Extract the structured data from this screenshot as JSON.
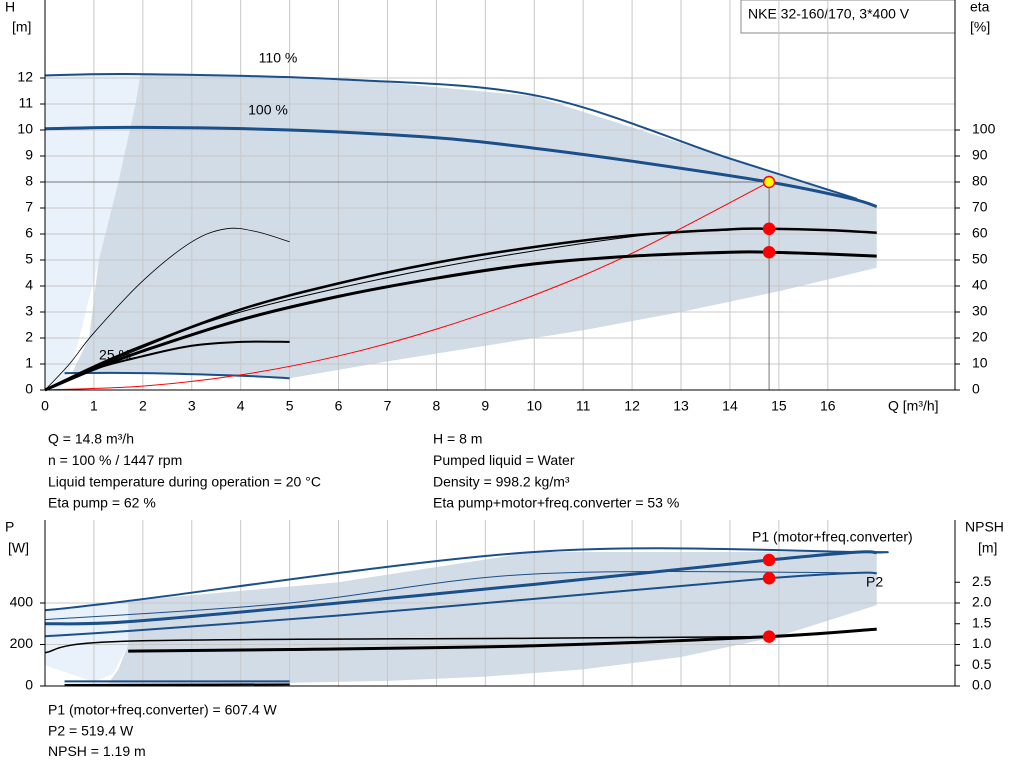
{
  "chart_data": [
    {
      "type": "line",
      "title": "NKE 32-160/170, 3*400 V",
      "xlabel": "Q [m³/h]",
      "ylabel": "H",
      "yunit": "[m]",
      "y2label": "eta",
      "y2unit": "[%]",
      "xlim": [
        0,
        18.6
      ],
      "xticks": [
        0,
        1,
        2,
        3,
        4,
        5,
        6,
        7,
        8,
        9,
        10,
        11,
        12,
        13,
        14,
        15,
        16
      ],
      "ylim": [
        0,
        15
      ],
      "yticks": [
        0,
        1,
        2,
        3,
        4,
        5,
        6,
        7,
        8,
        9,
        10,
        11,
        12
      ],
      "y2lim": [
        0,
        150
      ],
      "y2ticks": [
        0,
        10,
        20,
        30,
        40,
        50,
        60,
        70,
        80,
        90,
        100
      ],
      "grid": true,
      "annotations": [
        "110 %",
        "100 %",
        "25 %"
      ],
      "areas": [
        {
          "color": "#e9f1fa",
          "x": [
            0,
            0,
            1.95,
            1.85,
            1.5,
            1.1,
            0.7,
            0.5,
            0.3
          ],
          "values": [
            0,
            12.1,
            12.15,
            11,
            8,
            5,
            2,
            0.7,
            0
          ]
        },
        {
          "color": "#d1dce7",
          "x": [
            1.95,
            6,
            10,
            14,
            16.5,
            17,
            17,
            15,
            13,
            11,
            9,
            7,
            5,
            4,
            2,
            0.55,
            0.9,
            1.1,
            1.5,
            1.85
          ],
          "values": [
            12.15,
            12,
            11.3,
            8.9,
            7.4,
            7.05,
            4.7,
            3.8,
            3.0,
            2.3,
            1.7,
            1.1,
            0.45,
            0.55,
            0.65,
            0.65,
            2,
            5,
            8,
            11
          ]
        }
      ],
      "series": [
        {
          "color": "#1a4f8a",
          "linewidth": 2,
          "x": [
            0,
            1.9,
            6,
            10.1,
            14,
            16.6
          ],
          "values": [
            12.1,
            12.15,
            11.95,
            11.3,
            8.9,
            7.35
          ]
        },
        {
          "color": "#1a4f8a",
          "linewidth": 3,
          "x": [
            0,
            2,
            5,
            8,
            10,
            12,
            14.8,
            16.5,
            17
          ],
          "values": [
            10.05,
            10.1,
            10.0,
            9.7,
            9.3,
            8.8,
            8.0,
            7.35,
            7.05
          ]
        },
        {
          "color": "#1a4f8a",
          "linewidth": 2,
          "x": [
            0.4,
            2,
            4,
            5
          ],
          "values": [
            0.65,
            0.65,
            0.55,
            0.45
          ]
        },
        {
          "color": "#ff0000",
          "linewidth": 1,
          "x": [
            0,
            2,
            4,
            6,
            8,
            10,
            12,
            14.8
          ],
          "values": [
            0,
            0.15,
            0.58,
            1.31,
            2.34,
            3.65,
            5.26,
            8.0
          ]
        },
        {
          "color": "#000000",
          "linewidth": 2.5,
          "axis": "y2",
          "x": [
            0,
            1,
            2,
            4,
            6,
            8,
            10,
            12,
            14,
            14.8,
            16,
            17
          ],
          "values": [
            0,
            9,
            17,
            31,
            41,
            49,
            55,
            59.5,
            61.8,
            62,
            61.5,
            60.5
          ]
        },
        {
          "color": "#000000",
          "linewidth": 1,
          "axis": "y2",
          "x": [
            0,
            1.7,
            4,
            8,
            12,
            14
          ],
          "values": [
            0,
            14,
            30,
            47,
            59,
            61.5
          ]
        },
        {
          "color": "#000000",
          "linewidth": 3,
          "axis": "y2",
          "x": [
            0,
            1,
            2,
            4,
            6,
            8,
            10,
            12,
            14,
            14.8,
            16,
            17
          ],
          "values": [
            0,
            8,
            15,
            27,
            36,
            43,
            48.5,
            51.5,
            53,
            53,
            52.3,
            51.5
          ]
        },
        {
          "color": "#000000",
          "linewidth": 0.8,
          "axis": "y2",
          "x": [
            0,
            0.5,
            1,
            2,
            3,
            3.7,
            4.3,
            5
          ],
          "values": [
            0,
            10,
            22,
            42,
            57,
            62,
            61,
            57
          ]
        },
        {
          "color": "#000000",
          "linewidth": 2,
          "axis": "y2",
          "x": [
            0,
            1,
            2,
            3,
            4,
            5
          ],
          "values": [
            0,
            8,
            13,
            17,
            18.5,
            18.5
          ]
        }
      ],
      "markers": [
        {
          "x": 14.8,
          "value": 8,
          "color": "#ffff00"
        },
        {
          "x": 14.8,
          "value": 62,
          "axis": "y2",
          "color": "#ff0000"
        },
        {
          "x": 14.8,
          "value": 53,
          "axis": "y2",
          "color": "#ff0000"
        }
      ]
    },
    {
      "type": "line",
      "ylabel": "P",
      "yunit": "[W]",
      "y2label": "NPSH",
      "y2unit": "[m]",
      "xlim": [
        0,
        18.6
      ],
      "ylim": [
        0,
        800
      ],
      "yticks": [
        0,
        200,
        400
      ],
      "y2lim": [
        0,
        4
      ],
      "y2ticks": [
        {
          "value": 0,
          "label": "0.0"
        },
        0.5,
        {
          "value": 1,
          "label": "1.0"
        },
        1.5,
        {
          "value": 2,
          "label": "2.0"
        },
        2.5
      ],
      "grid": true,
      "areas": [
        {
          "color": "#e9f1fa",
          "x": [
            0,
            1.7,
            1.7,
            1.4,
            1,
            0
          ],
          "values": [
            360,
            410,
            200,
            60,
            20,
            100
          ]
        },
        {
          "color": "#d1dce7",
          "x": [
            1.7,
            6,
            10,
            17,
            17,
            15,
            13,
            11,
            9,
            7,
            5,
            1.3,
            1.5,
            1.7
          ],
          "values": [
            410,
            500,
            646,
            646,
            390,
            240,
            140,
            80,
            45,
            25,
            15,
            15,
            80,
            200
          ]
        }
      ],
      "series": [
        {
          "color": "#1a4f8a",
          "linewidth": 2,
          "x": [
            0,
            1.7,
            10,
            16.6,
            17
          ],
          "values": [
            365,
            410,
            646,
            646,
            643
          ]
        },
        {
          "color": "#1a4f8a",
          "linewidth": 1,
          "x": [
            0,
            5,
            10,
            17
          ],
          "values": [
            320,
            400,
            540,
            545
          ]
        },
        {
          "name": "P1 (motor+freq.converter)",
          "color": "#1a4f8a",
          "linewidth": 3,
          "x": [
            0,
            1.7,
            6,
            10,
            14.8,
            16.6,
            17
          ],
          "values": [
            300,
            310,
            400,
            490,
            607,
            645,
            642
          ]
        },
        {
          "name": "P2",
          "color": "#1a4f8a",
          "linewidth": 2,
          "x": [
            0,
            1.7,
            6,
            10,
            14.8,
            16.6,
            17
          ],
          "values": [
            240,
            265,
            340,
            420,
            519,
            545,
            543
          ]
        },
        {
          "color": "#1a4f8a",
          "linewidth": 2,
          "x": [
            0.4,
            5
          ],
          "values": [
            22,
            22
          ]
        },
        {
          "color": "#000000",
          "linewidth": 2,
          "x": [
            0.4,
            5
          ],
          "values": [
            5,
            8
          ]
        },
        {
          "color": "#000000",
          "linewidth": 1.5,
          "axis": "y2",
          "x": [
            0,
            1.7,
            10,
            14.8
          ],
          "values": [
            0.8,
            1.08,
            1.15,
            1.19
          ]
        },
        {
          "color": "#000000",
          "linewidth": 3,
          "axis": "y2",
          "x": [
            1.7,
            5,
            10,
            14.8,
            17
          ],
          "values": [
            0.84,
            0.88,
            0.97,
            1.19,
            1.37
          ]
        }
      ],
      "markers": [
        {
          "x": 14.8,
          "value": 607.4,
          "color": "#ff0000"
        },
        {
          "x": 14.8,
          "value": 519.4,
          "color": "#ff0000"
        },
        {
          "x": 14.8,
          "value": 1.19,
          "axis": "y2",
          "color": "#ff0000"
        }
      ]
    }
  ],
  "info": {
    "left": [
      "Q = 14.8 m³/h",
      "n = 100 % / 1447 rpm",
      "Liquid temperature during operation = 20 °C",
      "Eta pump = 62 %"
    ],
    "right": [
      "H = 8 m",
      "Pumped liquid = Water",
      "Density = 998.2 kg/m³",
      "Eta pump+motor+freq.converter = 53 %"
    ]
  },
  "power_info": [
    "P1 (motor+freq.converter) = 607.4 W",
    "P2 = 519.4 W",
    "NPSH = 1.19 m"
  ]
}
